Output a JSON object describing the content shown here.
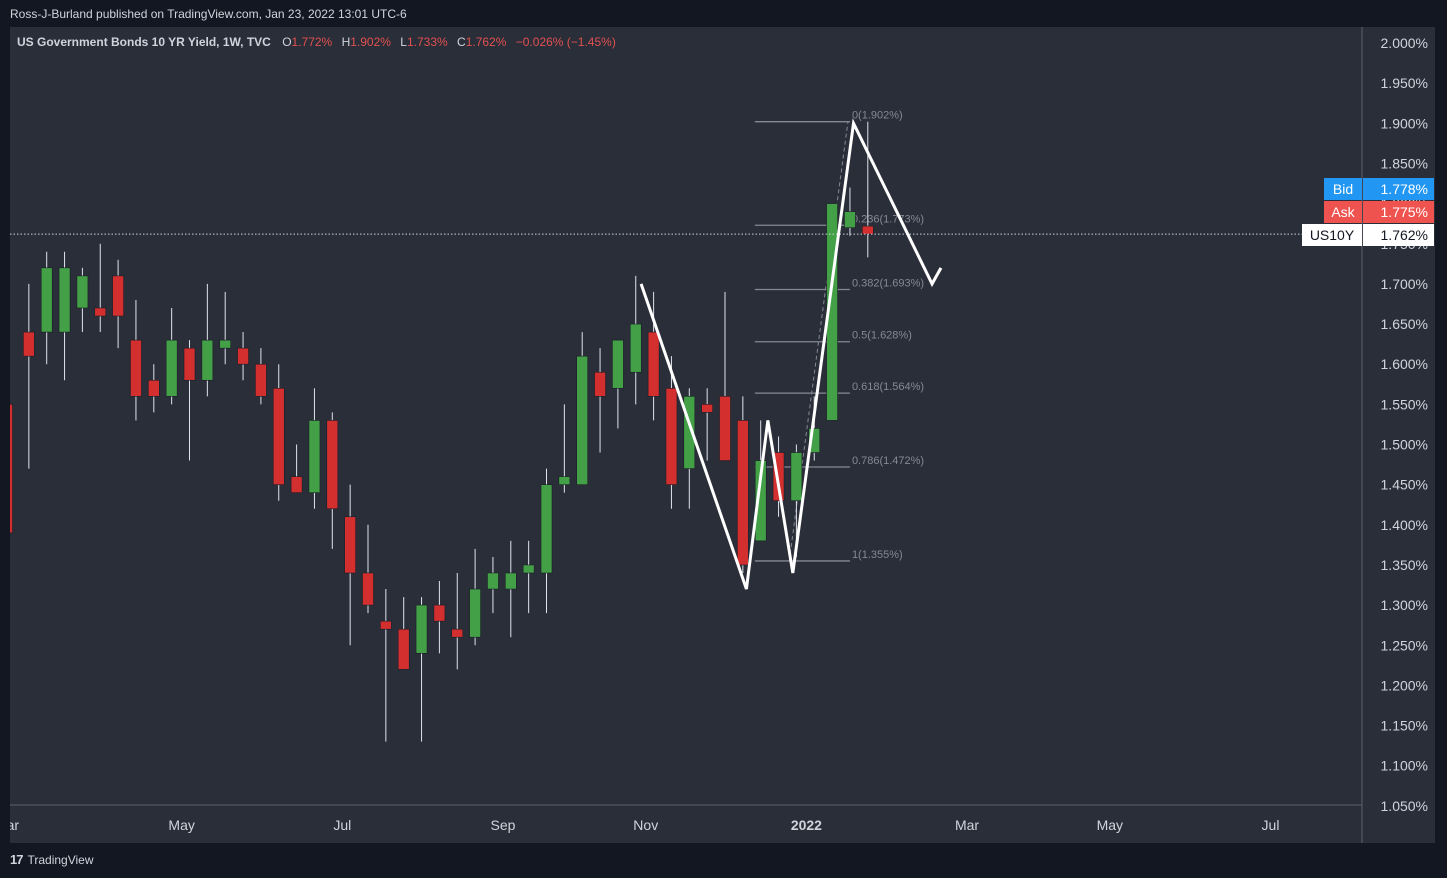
{
  "header": {
    "published": "Ross-J-Burland published on TradingView.com, Jan 23, 2022 13:01 UTC-6"
  },
  "footer": {
    "logo_glyph": "17",
    "brand": "TradingView"
  },
  "colors": {
    "background": "#2a2e39",
    "up": "#43a047",
    "down": "#d32f2f",
    "text": "#d1d4dc",
    "bid": "#2196f3",
    "ask": "#ef5350",
    "fib": "#868993",
    "drawing": "#ffffff"
  },
  "chart_data": {
    "type": "candlestick",
    "legend": {
      "symbol": "US Government Bonds 10 YR Yield, 1W, TVC",
      "open_label": "O",
      "open": "1.772%",
      "high_label": "H",
      "high": "1.902%",
      "low_label": "L",
      "low": "1.733%",
      "close_label": "C",
      "close": "1.762%",
      "change": "−0.026% (−1.45%)"
    },
    "ylim": [
      1.05,
      2.0
    ],
    "y_ticks": [
      "2.000%",
      "1.950%",
      "1.900%",
      "1.850%",
      "1.800%",
      "1.750%",
      "1.700%",
      "1.650%",
      "1.600%",
      "1.550%",
      "1.500%",
      "1.450%",
      "1.400%",
      "1.350%",
      "1.300%",
      "1.250%",
      "1.200%",
      "1.150%",
      "1.100%",
      "1.050%"
    ],
    "y_tick_values": [
      2.0,
      1.95,
      1.9,
      1.85,
      1.8,
      1.75,
      1.7,
      1.65,
      1.6,
      1.55,
      1.5,
      1.45,
      1.4,
      1.35,
      1.3,
      1.25,
      1.2,
      1.15,
      1.1,
      1.05
    ],
    "x_ticks": [
      {
        "label": "Mar",
        "week": 0
      },
      {
        "label": "May",
        "week": 9
      },
      {
        "label": "Jul",
        "week": 18
      },
      {
        "label": "Sep",
        "week": 27
      },
      {
        "label": "Nov",
        "week": 35
      },
      {
        "label": "2022",
        "week": 44
      },
      {
        "label": "Mar",
        "week": 53
      },
      {
        "label": "May",
        "week": 61
      },
      {
        "label": "Jul",
        "week": 70
      }
    ],
    "candles": [
      [
        1.55,
        1.58,
        1.38,
        1.39
      ],
      [
        1.64,
        1.7,
        1.47,
        1.61
      ],
      [
        1.64,
        1.74,
        1.6,
        1.72
      ],
      [
        1.64,
        1.74,
        1.58,
        1.72
      ],
      [
        1.67,
        1.72,
        1.64,
        1.71
      ],
      [
        1.67,
        1.75,
        1.64,
        1.66
      ],
      [
        1.71,
        1.73,
        1.62,
        1.66
      ],
      [
        1.63,
        1.68,
        1.53,
        1.56
      ],
      [
        1.58,
        1.6,
        1.54,
        1.56
      ],
      [
        1.56,
        1.67,
        1.55,
        1.63
      ],
      [
        1.62,
        1.63,
        1.48,
        1.58
      ],
      [
        1.58,
        1.7,
        1.56,
        1.63
      ],
      [
        1.62,
        1.69,
        1.6,
        1.63
      ],
      [
        1.62,
        1.64,
        1.58,
        1.6
      ],
      [
        1.6,
        1.62,
        1.55,
        1.56
      ],
      [
        1.57,
        1.6,
        1.43,
        1.45
      ],
      [
        1.46,
        1.5,
        1.44,
        1.44
      ],
      [
        1.44,
        1.57,
        1.42,
        1.53
      ],
      [
        1.53,
        1.54,
        1.37,
        1.42
      ],
      [
        1.41,
        1.45,
        1.25,
        1.34
      ],
      [
        1.34,
        1.4,
        1.29,
        1.3
      ],
      [
        1.28,
        1.32,
        1.13,
        1.27
      ],
      [
        1.27,
        1.31,
        1.22,
        1.22
      ],
      [
        1.24,
        1.31,
        1.13,
        1.3
      ],
      [
        1.3,
        1.33,
        1.24,
        1.28
      ],
      [
        1.27,
        1.34,
        1.22,
        1.26
      ],
      [
        1.26,
        1.37,
        1.25,
        1.32
      ],
      [
        1.32,
        1.36,
        1.29,
        1.34
      ],
      [
        1.32,
        1.38,
        1.26,
        1.34
      ],
      [
        1.34,
        1.38,
        1.29,
        1.35
      ],
      [
        1.34,
        1.47,
        1.29,
        1.45
      ],
      [
        1.45,
        1.55,
        1.44,
        1.46
      ],
      [
        1.45,
        1.64,
        1.45,
        1.61
      ],
      [
        1.59,
        1.62,
        1.49,
        1.56
      ],
      [
        1.57,
        1.63,
        1.52,
        1.63
      ],
      [
        1.59,
        1.71,
        1.55,
        1.65
      ],
      [
        1.64,
        1.69,
        1.53,
        1.56
      ],
      [
        1.57,
        1.61,
        1.42,
        1.45
      ],
      [
        1.47,
        1.57,
        1.42,
        1.56
      ],
      [
        1.55,
        1.57,
        1.48,
        1.54
      ],
      [
        1.56,
        1.69,
        1.48,
        1.48
      ],
      [
        1.53,
        1.56,
        1.34,
        1.35
      ],
      [
        1.38,
        1.53,
        1.38,
        1.48
      ],
      [
        1.49,
        1.51,
        1.41,
        1.43
      ],
      [
        1.43,
        1.5,
        1.36,
        1.49
      ],
      [
        1.49,
        1.56,
        1.48,
        1.52
      ],
      [
        1.53,
        1.8,
        1.53,
        1.8
      ],
      [
        1.77,
        1.82,
        1.76,
        1.79
      ],
      [
        1.772,
        1.902,
        1.733,
        1.762
      ]
    ],
    "fib": {
      "levels": [
        {
          "label": "0(1.902%)",
          "value": 1.902
        },
        {
          "label": "0.236(1.773%)",
          "value": 1.773
        },
        {
          "label": "0.382(1.693%)",
          "value": 1.693
        },
        {
          "label": "0.5(1.628%)",
          "value": 1.628
        },
        {
          "label": "0.618(1.564%)",
          "value": 1.564
        },
        {
          "label": "0.786(1.472%)",
          "value": 1.472
        },
        {
          "label": "1(1.355%)",
          "value": 1.355
        }
      ],
      "start_week": 41,
      "end_week": 47
    },
    "pattern_points": [
      {
        "week": 35.3,
        "value": 1.7
      },
      {
        "week": 41.2,
        "value": 1.32
      },
      {
        "week": 42.4,
        "value": 1.53
      },
      {
        "week": 43.8,
        "value": 1.34
      },
      {
        "week": 47.2,
        "value": 1.9
      },
      {
        "week": 51.6,
        "value": 1.7
      },
      {
        "week": 52.1,
        "value": 1.72
      }
    ],
    "price_line": 1.762,
    "price_labels": [
      {
        "text": "Bid",
        "value_text": "1.778%",
        "value": 1.778
      },
      {
        "text": "Ask",
        "value_text": "1.775%",
        "value": 1.775
      },
      {
        "text": "US10Y",
        "value_text": "1.762%",
        "value": 1.762
      }
    ]
  }
}
